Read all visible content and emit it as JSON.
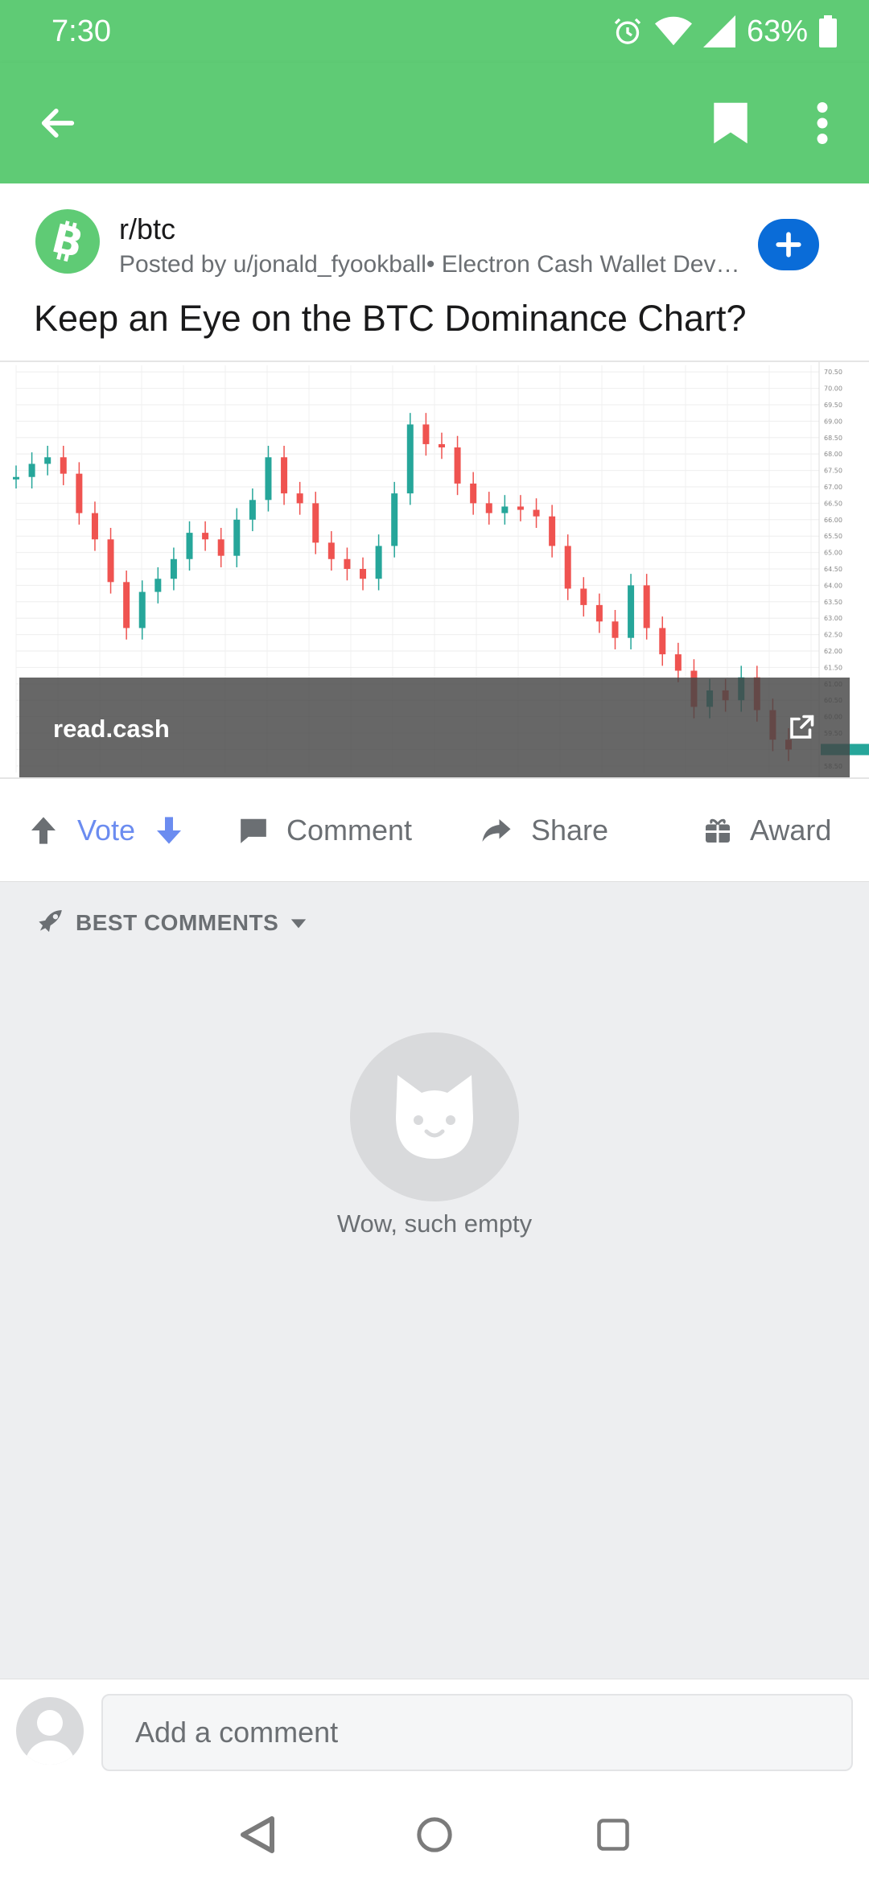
{
  "status_bar": {
    "time": "7:30",
    "battery": "63%"
  },
  "post": {
    "subreddit": "r/btc",
    "meta": "Posted by u/jonald_fyookball• Electron Cash Wallet Developer",
    "title": "Keep an Eye on the BTC Dominance Chart?",
    "link_domain": "read.cash"
  },
  "actions": {
    "vote": "Vote",
    "comment": "Comment",
    "share": "Share",
    "award": "Award"
  },
  "comments": {
    "sort_label": "BEST COMMENTS",
    "empty_text": "Wow, such empty"
  },
  "composer": {
    "placeholder": "Add a comment"
  },
  "colors": {
    "brand_green": "#5fcb75",
    "vote_blue": "#6b8cf0",
    "join_blue": "#0a6cd8",
    "candle_up": "#26a69a",
    "candle_down": "#ef5350"
  },
  "chart_data": {
    "type": "line",
    "y_ticks": [
      "70.50",
      "70.00",
      "69.50",
      "69.00",
      "68.50",
      "68.00",
      "67.50",
      "67.00",
      "66.50",
      "66.00",
      "65.50",
      "65.00",
      "64.50",
      "64.00",
      "63.50",
      "63.00",
      "62.50",
      "62.00",
      "61.50",
      "61.00",
      "60.50",
      "60.00",
      "59.50",
      "59.00",
      "58.50"
    ],
    "ylim": [
      58.3,
      70.7
    ],
    "values": [
      67.3,
      67.7,
      67.9,
      67.4,
      66.2,
      65.4,
      64.1,
      62.7,
      63.8,
      64.2,
      64.8,
      65.6,
      65.4,
      64.9,
      66.0,
      66.6,
      67.9,
      66.8,
      66.5,
      65.3,
      64.8,
      64.5,
      64.2,
      65.2,
      66.8,
      68.9,
      68.3,
      68.2,
      67.1,
      66.5,
      66.2,
      66.4,
      66.3,
      66.1,
      65.2,
      63.9,
      63.4,
      62.9,
      62.4,
      64.0,
      62.7,
      61.9,
      61.4,
      60.3,
      60.8,
      60.5,
      61.2,
      60.2,
      59.3,
      59.0
    ]
  }
}
